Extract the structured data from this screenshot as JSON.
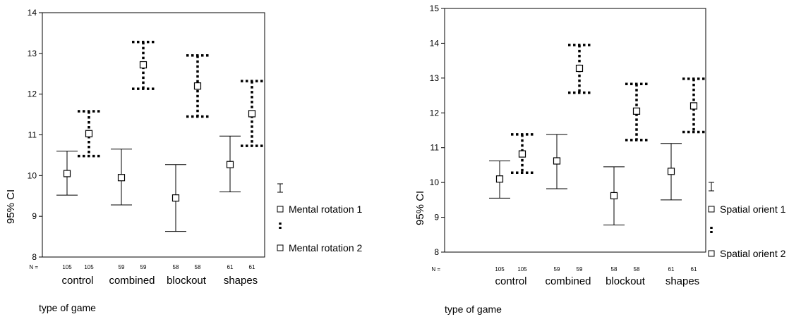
{
  "chart_data": [
    {
      "type": "errorbar",
      "xlabel": "type of game",
      "ylabel": "95% CI",
      "ylim": [
        8,
        14
      ],
      "yticks": [
        8,
        9,
        10,
        11,
        12,
        13,
        14
      ],
      "n_label": "N =",
      "categories": [
        "control",
        "combined",
        "blockout",
        "shapes"
      ],
      "series": [
        {
          "name": "Mental rotation 1",
          "line_style": "solid",
          "n": [
            "105",
            "59",
            "58",
            "61"
          ],
          "mean": [
            10.05,
            9.95,
            9.45,
            10.27
          ],
          "lower": [
            9.52,
            9.28,
            8.63,
            9.6
          ],
          "upper": [
            10.6,
            10.65,
            10.27,
            10.97
          ]
        },
        {
          "name": "Mental rotation 2",
          "line_style": "dotted",
          "n": [
            "105",
            "59",
            "58",
            "61"
          ],
          "mean": [
            11.03,
            12.72,
            12.2,
            11.52
          ],
          "lower": [
            10.48,
            12.13,
            11.45,
            10.73
          ],
          "upper": [
            11.58,
            13.28,
            12.95,
            12.32
          ]
        }
      ]
    },
    {
      "type": "errorbar",
      "xlabel": "type of game",
      "ylabel": "95% CI",
      "ylim": [
        8,
        15
      ],
      "yticks": [
        8,
        9,
        10,
        11,
        12,
        13,
        14,
        15
      ],
      "n_label": "N =",
      "categories": [
        "control",
        "combined",
        "blockout",
        "shapes"
      ],
      "series": [
        {
          "name": "Spatial orient 1",
          "line_style": "solid",
          "n": [
            "105",
            "59",
            "58",
            "61"
          ],
          "mean": [
            10.1,
            10.62,
            9.62,
            10.32
          ],
          "lower": [
            9.55,
            9.82,
            8.78,
            9.5
          ],
          "upper": [
            10.62,
            11.38,
            10.45,
            11.12
          ]
        },
        {
          "name": "Spatial orient 2",
          "line_style": "dotted",
          "n": [
            "105",
            "59",
            "58",
            "61"
          ],
          "mean": [
            10.82,
            13.28,
            12.05,
            12.2
          ],
          "lower": [
            10.28,
            12.58,
            11.22,
            11.45
          ],
          "upper": [
            11.38,
            13.95,
            12.83,
            12.98
          ]
        }
      ]
    }
  ]
}
